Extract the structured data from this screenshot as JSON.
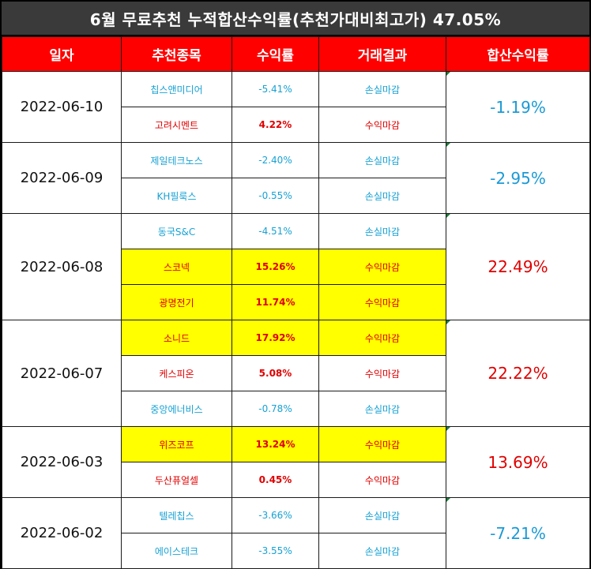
{
  "title": "6월 무료추천 누적합산수익률(추천가대비최고가) 47.05%",
  "headers": [
    "일자",
    "추천종목",
    "수익률",
    "거래결과",
    "합산수익률"
  ],
  "colors": {
    "header_bg": "#ff0000",
    "loss": "#17a2d4",
    "gain": "#e00000",
    "highlight": "#ffff00"
  },
  "groups": [
    {
      "date": "2022-06-10",
      "total": "-1.19%",
      "total_type": "loss",
      "rows": [
        {
          "stock": "칩스앤미디어",
          "rate": "-5.41%",
          "result": "손실마감",
          "type": "loss",
          "highlight": false
        },
        {
          "stock": "고려시멘트",
          "rate": "4.22%",
          "result": "수익마감",
          "type": "gain",
          "highlight": false
        }
      ]
    },
    {
      "date": "2022-06-09",
      "total": "-2.95%",
      "total_type": "loss",
      "rows": [
        {
          "stock": "제일테크노스",
          "rate": "-2.40%",
          "result": "손실마감",
          "type": "loss",
          "highlight": false
        },
        {
          "stock": "KH필룩스",
          "rate": "-0.55%",
          "result": "손실마감",
          "type": "loss",
          "highlight": false
        }
      ]
    },
    {
      "date": "2022-06-08",
      "total": "22.49%",
      "total_type": "gain",
      "rows": [
        {
          "stock": "동국S&C",
          "rate": "-4.51%",
          "result": "손실마감",
          "type": "loss",
          "highlight": false
        },
        {
          "stock": "스코넥",
          "rate": "15.26%",
          "result": "수익마감",
          "type": "gain",
          "highlight": true
        },
        {
          "stock": "광명전기",
          "rate": "11.74%",
          "result": "수익마감",
          "type": "gain",
          "highlight": true
        }
      ]
    },
    {
      "date": "2022-06-07",
      "total": "22.22%",
      "total_type": "gain",
      "rows": [
        {
          "stock": "소니드",
          "rate": "17.92%",
          "result": "수익마감",
          "type": "gain",
          "highlight": true
        },
        {
          "stock": "케스피온",
          "rate": "5.08%",
          "result": "수익마감",
          "type": "gain",
          "highlight": false
        },
        {
          "stock": "중앙에너비스",
          "rate": "-0.78%",
          "result": "손실마감",
          "type": "loss",
          "highlight": false
        }
      ]
    },
    {
      "date": "2022-06-03",
      "total": "13.69%",
      "total_type": "gain",
      "rows": [
        {
          "stock": "위즈코프",
          "rate": "13.24%",
          "result": "수익마감",
          "type": "gain",
          "highlight": true
        },
        {
          "stock": "두산퓨얼셀",
          "rate": "0.45%",
          "result": "수익마감",
          "type": "gain",
          "highlight": false
        }
      ]
    },
    {
      "date": "2022-06-02",
      "total": "-7.21%",
      "total_type": "loss",
      "rows": [
        {
          "stock": "텔레칩스",
          "rate": "-3.66%",
          "result": "손실마감",
          "type": "loss",
          "highlight": false
        },
        {
          "stock": "에이스테크",
          "rate": "-3.55%",
          "result": "손실마감",
          "type": "loss",
          "highlight": false
        }
      ]
    }
  ]
}
